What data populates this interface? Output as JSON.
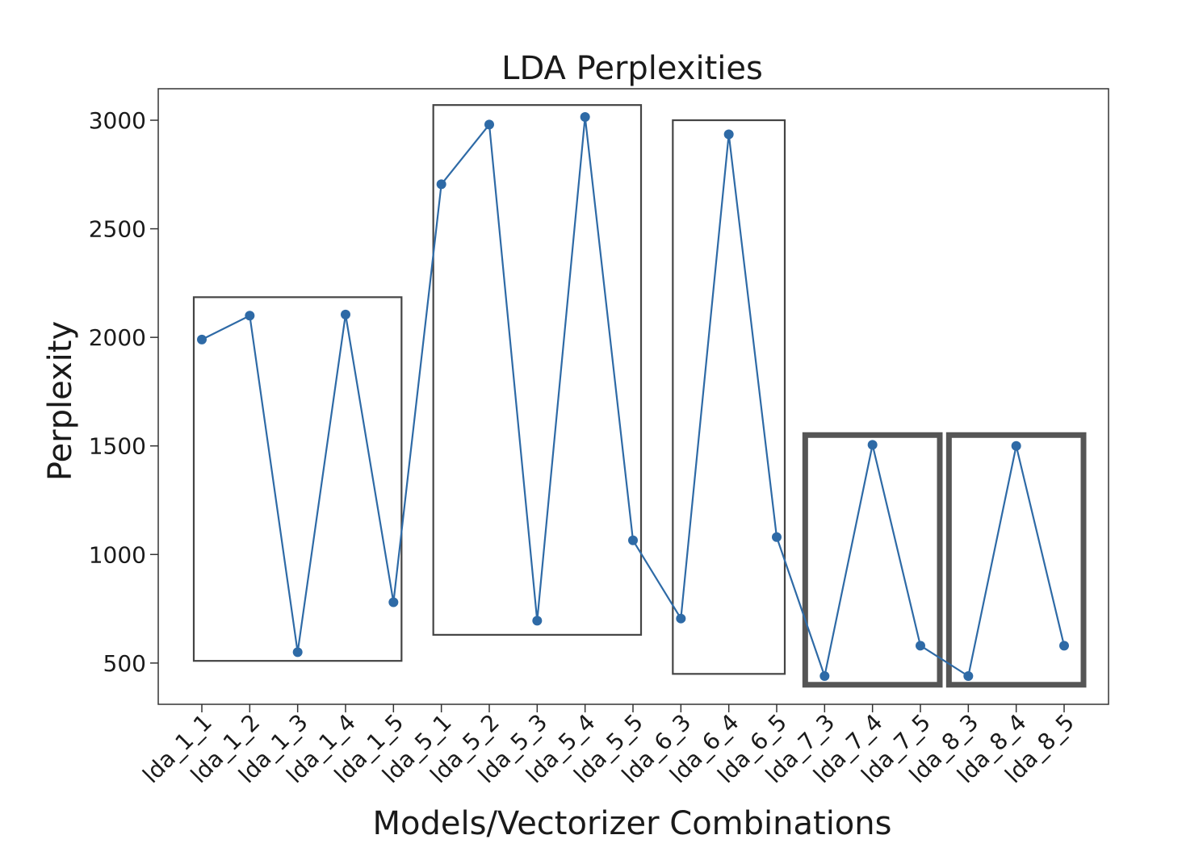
{
  "chart_data": {
    "type": "line",
    "title": "LDA Perplexities",
    "xlabel": "Models/Vectorizer Combinations",
    "ylabel": "Perplexity",
    "categories": [
      "lda_1_1",
      "lda_1_2",
      "lda_1_3",
      "lda_1_4",
      "lda_1_5",
      "lda_5_1",
      "lda_5_2",
      "lda_5_3",
      "lda_5_4",
      "lda_5_5",
      "lda_6_3",
      "lda_6_4",
      "lda_6_5",
      "lda_7_3",
      "lda_7_4",
      "lda_7_5",
      "lda_8_3",
      "lda_8_4",
      "lda_8_5"
    ],
    "series": [
      {
        "values": [
          1990,
          2100,
          550,
          2105,
          780,
          2705,
          2980,
          695,
          3015,
          1065,
          705,
          2935,
          1080,
          440,
          1505,
          580,
          440,
          1500,
          580
        ],
        "color": "#2e6aa6"
      }
    ],
    "yticks": [
      500,
      1000,
      1500,
      2000,
      2500,
      3000
    ],
    "ylim": [
      310,
      3145
    ],
    "grid": false,
    "marker": "circle",
    "highlight_boxes": [
      {
        "from": "lda_1_1",
        "to": "lda_1_5",
        "y_range": [
          510,
          2185
        ],
        "style": "thin"
      },
      {
        "from": "lda_5_1",
        "to": "lda_5_5",
        "y_range": [
          630,
          3070
        ],
        "style": "thin"
      },
      {
        "from": "lda_6_3",
        "to": "lda_6_5",
        "y_range": [
          450,
          3000
        ],
        "style": "thin"
      },
      {
        "from": "lda_7_3",
        "to": "lda_7_5",
        "y_range": [
          400,
          1550
        ],
        "style": "bold"
      },
      {
        "from": "lda_8_3",
        "to": "lda_8_5",
        "y_range": [
          400,
          1550
        ],
        "style": "bold"
      }
    ]
  }
}
